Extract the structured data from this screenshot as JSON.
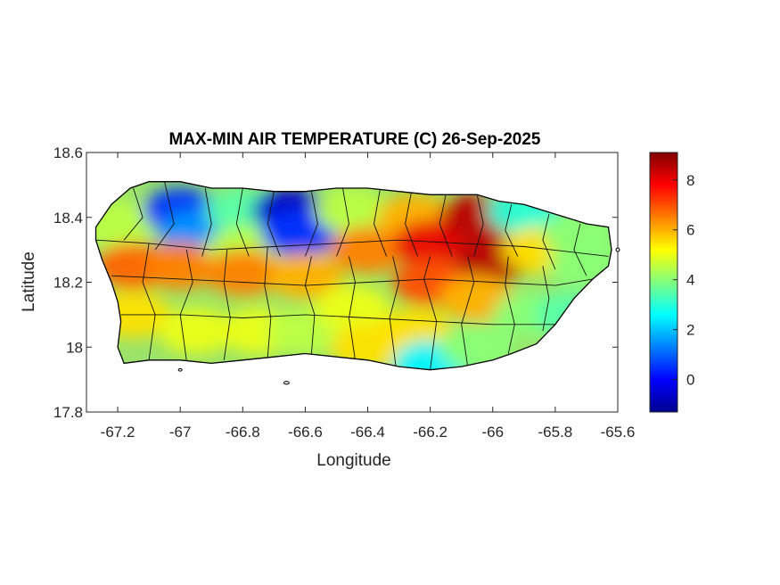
{
  "chart_data": {
    "type": "heatmap",
    "title": "MAX-MIN AIR TEMPERATURE (C) 26-Sep-2025",
    "xlabel": "Longitude",
    "ylabel": "Latitude",
    "xlim": [
      -67.3,
      -65.6
    ],
    "ylim": [
      17.8,
      18.6
    ],
    "xticks": [
      -67.2,
      -67,
      -66.8,
      -66.6,
      -66.4,
      -66.2,
      -66,
      -65.8,
      -65.6
    ],
    "xtick_labels": [
      "-67.2",
      "-67",
      "-66.8",
      "-66.6",
      "-66.4",
      "-66.2",
      "-66",
      "-65.8",
      "-65.6"
    ],
    "yticks": [
      17.8,
      18,
      18.2,
      18.4,
      18.6
    ],
    "ytick_labels": [
      "17.8",
      "18",
      "18.2",
      "18.4",
      "18.6"
    ],
    "colorbar": {
      "colormap": "jet",
      "range": [
        -1.3,
        9.1
      ],
      "ticks": [
        0,
        2,
        4,
        6,
        8
      ],
      "tick_labels": [
        "0",
        "2",
        "4",
        "6",
        "8"
      ]
    },
    "grid": false,
    "region_values": [
      {
        "lon": -67.2,
        "lat": 18.38,
        "value": 4.5
      },
      {
        "lon": -67.15,
        "lat": 18.25,
        "value": 6.8
      },
      {
        "lon": -67.15,
        "lat": 18.1,
        "value": 5.5
      },
      {
        "lon": -67.0,
        "lat": 18.42,
        "value": 0.5
      },
      {
        "lon": -66.95,
        "lat": 18.35,
        "value": 1.5
      },
      {
        "lon": -67.0,
        "lat": 18.25,
        "value": 6.5
      },
      {
        "lon": -66.95,
        "lat": 18.05,
        "value": 5.0
      },
      {
        "lon": -66.8,
        "lat": 18.42,
        "value": 3.5
      },
      {
        "lon": -66.8,
        "lat": 18.3,
        "value": 4.5
      },
      {
        "lon": -66.8,
        "lat": 18.23,
        "value": 6.5
      },
      {
        "lon": -66.75,
        "lat": 18.05,
        "value": 5.0
      },
      {
        "lon": -66.65,
        "lat": 18.42,
        "value": -0.5
      },
      {
        "lon": -66.62,
        "lat": 18.35,
        "value": 0.5
      },
      {
        "lon": -66.6,
        "lat": 18.22,
        "value": 6.0
      },
      {
        "lon": -66.6,
        "lat": 18.05,
        "value": 4.5
      },
      {
        "lon": -66.45,
        "lat": 18.42,
        "value": 4.5
      },
      {
        "lon": -66.4,
        "lat": 18.3,
        "value": 6.5
      },
      {
        "lon": -66.45,
        "lat": 18.12,
        "value": 5.0
      },
      {
        "lon": -66.4,
        "lat": 18.0,
        "value": 5.5
      },
      {
        "lon": -66.25,
        "lat": 18.4,
        "value": 6.0
      },
      {
        "lon": -66.2,
        "lat": 18.32,
        "value": 8.0
      },
      {
        "lon": -66.2,
        "lat": 18.2,
        "value": 7.0
      },
      {
        "lon": -66.25,
        "lat": 18.05,
        "value": 5.5
      },
      {
        "lon": -66.2,
        "lat": 17.95,
        "value": 2.5
      },
      {
        "lon": -66.05,
        "lat": 18.4,
        "value": 8.5
      },
      {
        "lon": -66.0,
        "lat": 18.27,
        "value": 8.5
      },
      {
        "lon": -66.05,
        "lat": 18.15,
        "value": 6.0
      },
      {
        "lon": -66.05,
        "lat": 18.0,
        "value": 4.0
      },
      {
        "lon": -65.9,
        "lat": 18.42,
        "value": 3.0
      },
      {
        "lon": -65.85,
        "lat": 18.3,
        "value": 5.5
      },
      {
        "lon": -65.88,
        "lat": 18.1,
        "value": 4.0
      },
      {
        "lon": -65.72,
        "lat": 18.35,
        "value": 4.0
      },
      {
        "lon": -65.7,
        "lat": 18.25,
        "value": 4.0
      },
      {
        "lon": -65.75,
        "lat": 18.1,
        "value": 3.5
      }
    ]
  }
}
